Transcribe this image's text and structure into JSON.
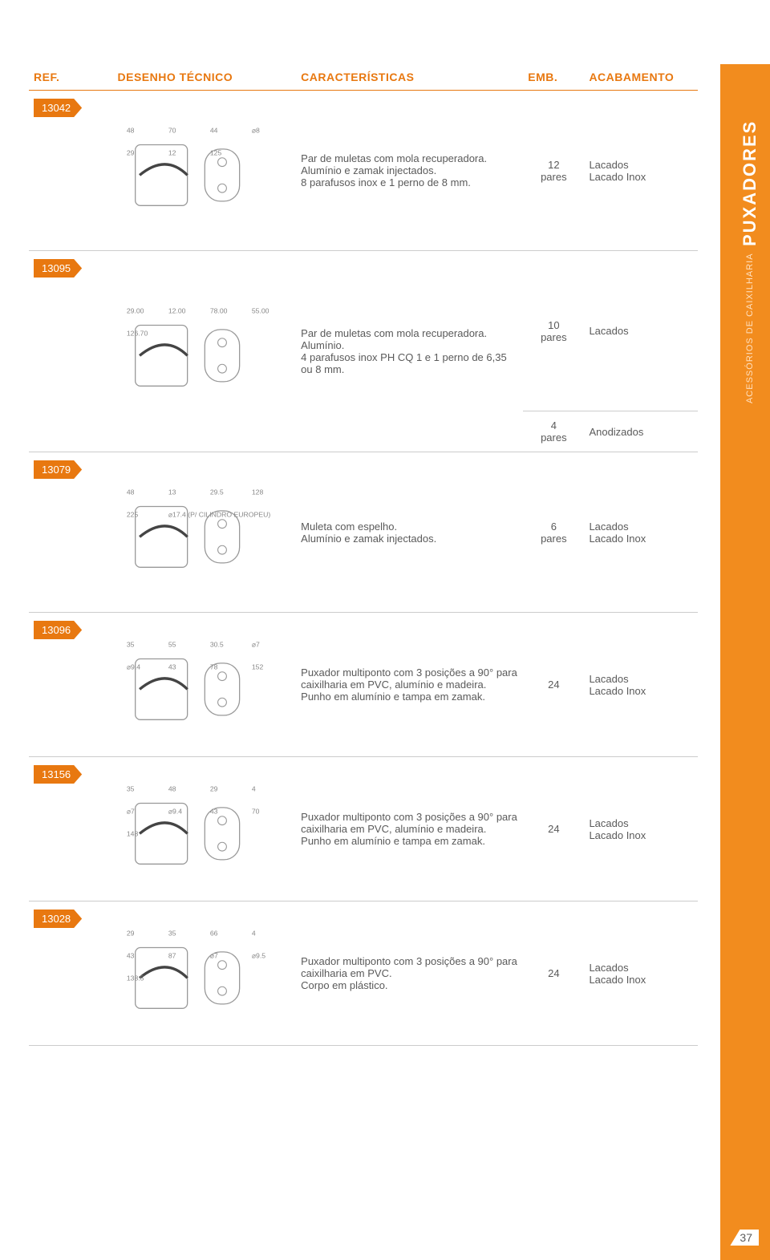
{
  "sideTab": {
    "caption": "ACESSÓRIOS DE CAIXILHARIA",
    "title": "PUXADORES"
  },
  "pageNumber": "37",
  "headers": {
    "ref": "REF.",
    "drawing": "DESENHO TÉCNICO",
    "characteristics": "CARACTERÍSTICAS",
    "emb": "EMB.",
    "finish": "ACABAMENTO"
  },
  "rows": [
    {
      "ref": "13042",
      "char": "Par de muletas com mola recuperadora.\nAlumínio e zamak injectados.\n8 parafusos inox e 1 perno de 8 mm.",
      "emb": "12\npares",
      "finish": "Lacados\nLacado Inox",
      "height": "row-tall",
      "drawing_dims": [
        "48",
        "70",
        "44",
        "⌀8",
        "29",
        "12",
        "125"
      ]
    },
    {
      "ref": "13095",
      "char": "Par de muletas com mola recuperadora.\nAlumínio.\n4 parafusos inox PH CQ 1 e 1 perno de 6,35 ou 8 mm.",
      "embSplit": [
        {
          "emb": "10\npares",
          "finish": "Lacados"
        },
        {
          "emb": "4\npares",
          "finish": "Anodizados"
        }
      ],
      "height": "row-tall",
      "drawing_dims": [
        "29.00",
        "12.00",
        "78.00",
        "55.00",
        "126.70"
      ]
    },
    {
      "ref": "13079",
      "char": "Muleta com espelho.\nAlumínio e zamak injectados.",
      "emb": "6\npares",
      "finish": "Lacados\nLacado Inox",
      "height": "row-tall",
      "drawing_dims": [
        "48",
        "13",
        "29.5",
        "128",
        "225",
        "⌀17.4 (P/ CILINDRO EUROPEU)"
      ]
    },
    {
      "ref": "13096",
      "char": "Puxador multiponto com 3 posições a 90° para caixilharia em PVC, alumínio e madeira.\nPunho em alumínio e tampa em zamak.",
      "emb": "24",
      "finish": "Lacados\nLacado Inox",
      "height": "row-med",
      "drawing_dims": [
        "35",
        "55",
        "30.5",
        "⌀7",
        "⌀9.4",
        "43",
        "78",
        "152"
      ]
    },
    {
      "ref": "13156",
      "char": "Puxador multiponto com 3 posições a 90° para caixilharia em PVC, alumínio e madeira.\nPunho em alumínio e tampa em zamak.",
      "emb": "24",
      "finish": "Lacados\nLacado Inox",
      "height": "row-med",
      "drawing_dims": [
        "35",
        "48",
        "29",
        "4",
        "⌀7",
        "⌀9.4",
        "43",
        "70",
        "148"
      ]
    },
    {
      "ref": "13028",
      "char": "Puxador multiponto com 3 posições a 90° para caixilharia em PVC.\nCorpo em plástico.",
      "emb": "24",
      "finish": "Lacados\nLacado Inox",
      "height": "row-med",
      "drawing_dims": [
        "29",
        "35",
        "66",
        "4",
        "43",
        "87",
        "⌀7",
        "⌀9.5",
        "138.5"
      ]
    }
  ],
  "colors": {
    "accent": "#e87810",
    "sidebar": "#f28c1e",
    "text": "#5a5a5a",
    "border": "#cccccc"
  }
}
